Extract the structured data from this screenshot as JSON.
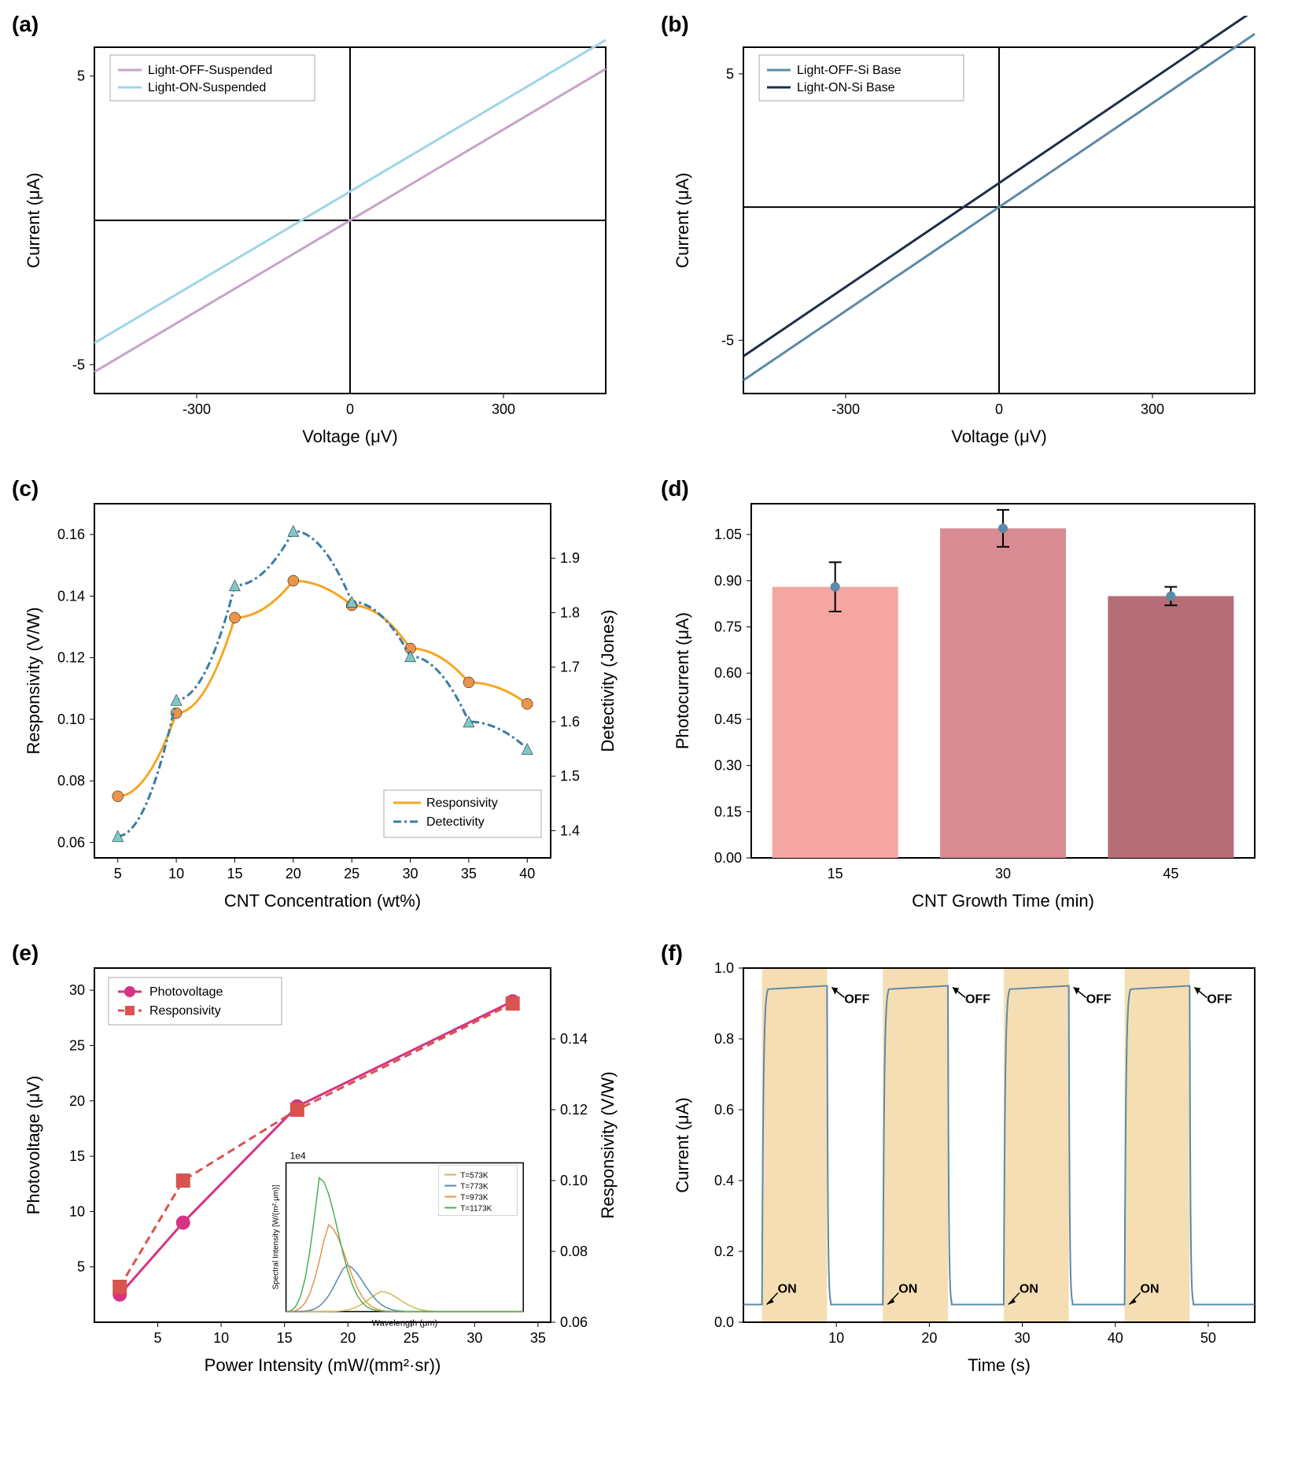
{
  "panel_a": {
    "label": "(a)",
    "type": "line",
    "xlabel": "Voltage (μV)",
    "ylabel": "Current (μA)",
    "xlim": [
      -500,
      500
    ],
    "ylim": [
      -6,
      6
    ],
    "xtick_step": 300,
    "ytick_step": 5,
    "background": "#ffffff",
    "axis_color": "#000000",
    "series": [
      {
        "name": "Light-OFF-Suspended",
        "color": "#c8a2c8",
        "y_intercept": 0,
        "slope": 0.0105
      },
      {
        "name": "Light-ON-Suspended",
        "color": "#9fd4e8",
        "y_intercept": 1.0,
        "slope": 0.0105
      }
    ],
    "legend_pos": "top-left",
    "line_width": 3
  },
  "panel_b": {
    "label": "(b)",
    "type": "line",
    "xlabel": "Voltage (μV)",
    "ylabel": "Current (μA)",
    "xlim": [
      -500,
      500
    ],
    "ylim": [
      -7,
      6
    ],
    "xtick_step": 300,
    "ytick_step": 5,
    "background": "#ffffff",
    "axis_color": "#000000",
    "series": [
      {
        "name": "Light-OFF-Si Base",
        "color": "#5b8aa8",
        "y_intercept": 0,
        "slope": 0.013
      },
      {
        "name": "Light-ON-Si Base",
        "color": "#1e2f4a",
        "y_intercept": 0.9,
        "slope": 0.013
      }
    ],
    "legend_pos": "top-left",
    "line_width": 3
  },
  "panel_c": {
    "label": "(c)",
    "type": "dual_axis_line",
    "xlabel": "CNT Concentration (wt%)",
    "ylabel_left": "Responsivity (V/W)",
    "ylabel_right": "Detectivity (Jones)",
    "xlim": [
      3,
      42
    ],
    "ylim_left": [
      0.055,
      0.17
    ],
    "ylim_right": [
      1.35,
      2.0
    ],
    "xticks": [
      5,
      10,
      15,
      20,
      25,
      30,
      35,
      40
    ],
    "yticks_left": [
      0.06,
      0.08,
      0.1,
      0.12,
      0.14,
      0.16
    ],
    "yticks_right": [
      1.4,
      1.5,
      1.6,
      1.7,
      1.8,
      1.9
    ],
    "series_left": {
      "name": "Responsivity",
      "color": "#f5a623",
      "marker_color": "#e8944a",
      "marker": "circle",
      "x": [
        5,
        10,
        15,
        20,
        25,
        30,
        35,
        40
      ],
      "y": [
        0.075,
        0.102,
        0.133,
        0.145,
        0.137,
        0.123,
        0.112,
        0.105
      ],
      "line_style": "solid"
    },
    "series_right": {
      "name": "Detectivity",
      "color": "#3a7ca5",
      "marker_color": "#7fc8c8",
      "marker": "triangle",
      "x": [
        5,
        10,
        15,
        20,
        25,
        30,
        35,
        40
      ],
      "y": [
        1.39,
        1.64,
        1.85,
        1.95,
        1.82,
        1.72,
        1.6,
        1.55
      ],
      "line_style": "dashdot"
    },
    "legend_pos": "bottom-right",
    "line_width": 3,
    "marker_size": 7
  },
  "panel_d": {
    "label": "(d)",
    "type": "bar",
    "xlabel": "CNT Growth Time (min)",
    "ylabel": "Photocurrent (μA)",
    "categories": [
      "15",
      "30",
      "45"
    ],
    "values": [
      0.88,
      1.07,
      0.85
    ],
    "errors": [
      0.08,
      0.06,
      0.03
    ],
    "bar_colors": [
      "#f4a7a0",
      "#d98b93",
      "#b56d78"
    ],
    "ylim": [
      0,
      1.15
    ],
    "yticks": [
      0.0,
      0.15,
      0.3,
      0.45,
      0.6,
      0.75,
      0.9,
      1.05
    ],
    "error_marker_color": "#5b8aa8",
    "bar_width": 0.75
  },
  "panel_e": {
    "label": "(e)",
    "type": "dual_axis_line",
    "xlabel": "Power Intensity (mW/(mm²·sr))",
    "ylabel_left": "Photovoltage (μV)",
    "ylabel_right": "Responsivity (V/W)",
    "xlim": [
      0,
      36
    ],
    "ylim_left": [
      0,
      32
    ],
    "ylim_right": [
      0.06,
      0.16
    ],
    "xticks": [
      5,
      10,
      15,
      20,
      25,
      30,
      35
    ],
    "yticks_left": [
      5,
      10,
      15,
      20,
      25,
      30
    ],
    "yticks_right": [
      0.06,
      0.08,
      0.1,
      0.12,
      0.14
    ],
    "series_left": {
      "name": "Photovoltage",
      "color": "#d63384",
      "marker": "circle",
      "x": [
        2,
        7,
        16,
        33
      ],
      "y": [
        2.5,
        9,
        19.5,
        29
      ],
      "line_style": "solid"
    },
    "series_right": {
      "name": "Responsivity",
      "color": "#d9534f",
      "marker": "square",
      "x": [
        2,
        7,
        16,
        33
      ],
      "y": [
        0.07,
        0.1,
        0.12,
        0.15
      ],
      "line_style": "dashed"
    },
    "legend_pos": "top-left",
    "line_width": 3,
    "marker_size": 9,
    "inset": {
      "xlabel": "Wavelength (μm)",
      "ylabel": "Spectral Intensity [W/(m²·μm)]",
      "annotation": "1e4",
      "xlim": [
        0,
        20
      ],
      "series": [
        {
          "name": "T=573K",
          "color": "#c9bc4e"
        },
        {
          "name": "T=773K",
          "color": "#5b8aa8"
        },
        {
          "name": "T=973K",
          "color": "#e8944a"
        },
        {
          "name": "T=1173K",
          "color": "#4caf50"
        }
      ]
    }
  },
  "panel_f": {
    "label": "(f)",
    "type": "time_series",
    "xlabel": "Time (s)",
    "ylabel": "Current (μA)",
    "xlim": [
      0,
      55
    ],
    "ylim": [
      0,
      1.0
    ],
    "xticks": [
      10,
      20,
      30,
      40,
      50
    ],
    "yticks": [
      0.0,
      0.2,
      0.4,
      0.6,
      0.8,
      1.0
    ],
    "line_color": "#5b8aa8",
    "shade_color": "#f5deb3",
    "on_label": "ON",
    "off_label": "OFF",
    "on_intervals": [
      [
        2,
        9
      ],
      [
        15,
        22
      ],
      [
        28,
        35
      ],
      [
        41,
        48
      ]
    ],
    "high_value": 0.95,
    "low_value": 0.05,
    "line_width": 2
  }
}
